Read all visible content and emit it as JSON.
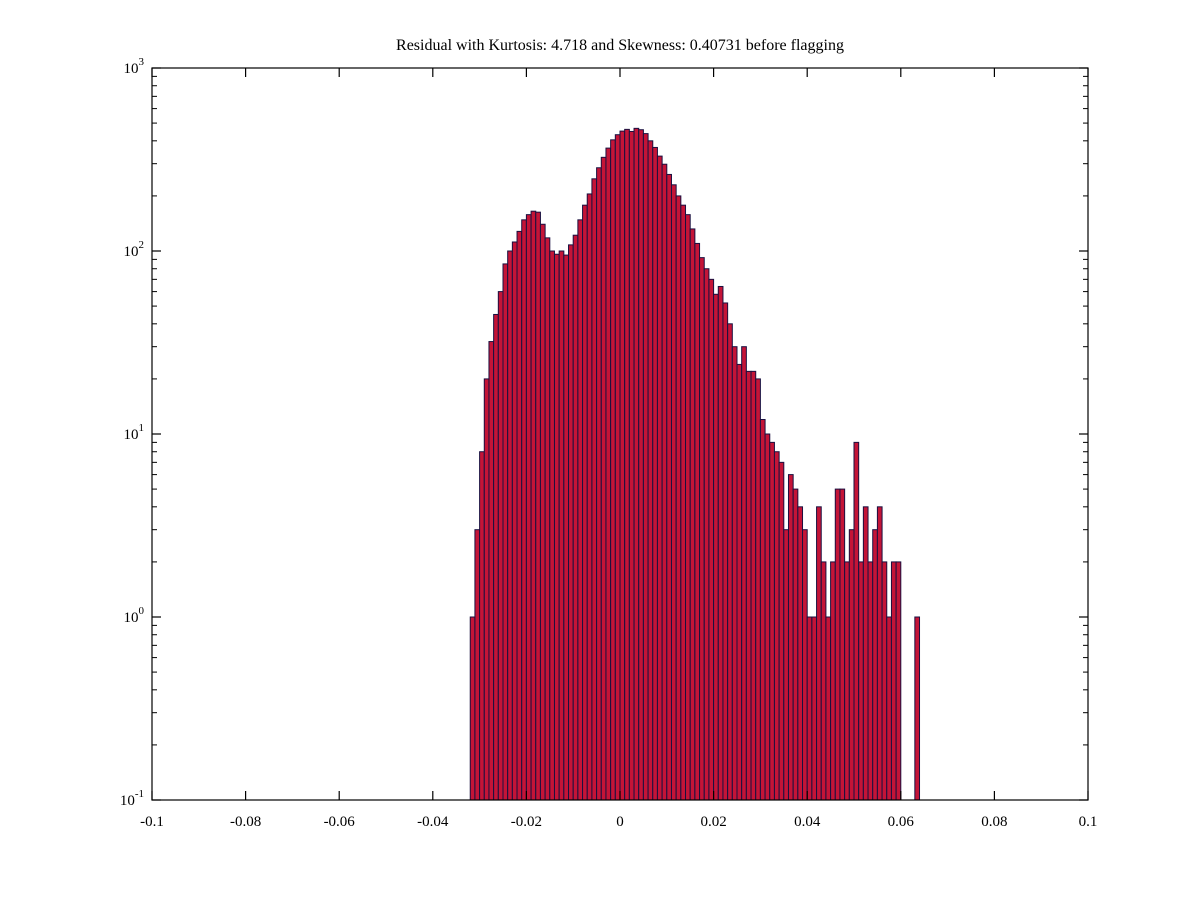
{
  "figure": {
    "background": "#ffffff"
  },
  "chart_data": {
    "type": "bar",
    "subtype": "histogram",
    "title": "Residual with Kurtosis: 4.718 and Skewness: 0.40731 before flagging",
    "xlabel": "",
    "ylabel": "",
    "xlim": [
      -0.1,
      0.1
    ],
    "y_scale": "log",
    "ylim_exp": [
      -1,
      3
    ],
    "y_base_label": "10",
    "y_ticks_exp": [
      -1,
      0,
      1,
      2,
      3
    ],
    "x_ticks": [
      -0.1,
      -0.08,
      -0.06,
      -0.04,
      -0.02,
      0,
      0.02,
      0.04,
      0.06,
      0.08,
      0.1
    ],
    "x_tick_labels": [
      "-0.1",
      "-0.08",
      "-0.06",
      "-0.04",
      "-0.02",
      "0",
      "0.02",
      "0.04",
      "0.06",
      "0.08",
      "0.1"
    ],
    "bin_start": -0.032,
    "bin_width": 0.001,
    "counts": [
      1,
      3,
      8,
      20,
      32,
      45,
      60,
      85,
      100,
      112,
      128,
      148,
      158,
      165,
      163,
      140,
      118,
      100,
      96,
      100,
      95,
      108,
      122,
      148,
      178,
      205,
      248,
      285,
      325,
      365,
      405,
      432,
      452,
      462,
      450,
      468,
      460,
      438,
      400,
      368,
      330,
      298,
      262,
      230,
      200,
      178,
      158,
      132,
      110,
      92,
      80,
      70,
      58,
      64,
      52,
      40,
      30,
      24,
      30,
      22,
      22,
      20,
      12,
      10,
      9,
      8,
      7,
      3,
      6,
      5,
      4,
      3,
      1,
      1,
      4,
      2,
      1,
      2,
      5,
      5,
      2,
      3,
      9,
      2,
      4,
      2,
      3,
      4,
      2,
      1,
      2,
      2,
      0,
      0,
      0,
      1
    ],
    "colors": {
      "bar_fill": "#c41437",
      "bar_edge": "#1a1040",
      "axis": "#000000"
    },
    "grid": false,
    "legend": "none"
  }
}
